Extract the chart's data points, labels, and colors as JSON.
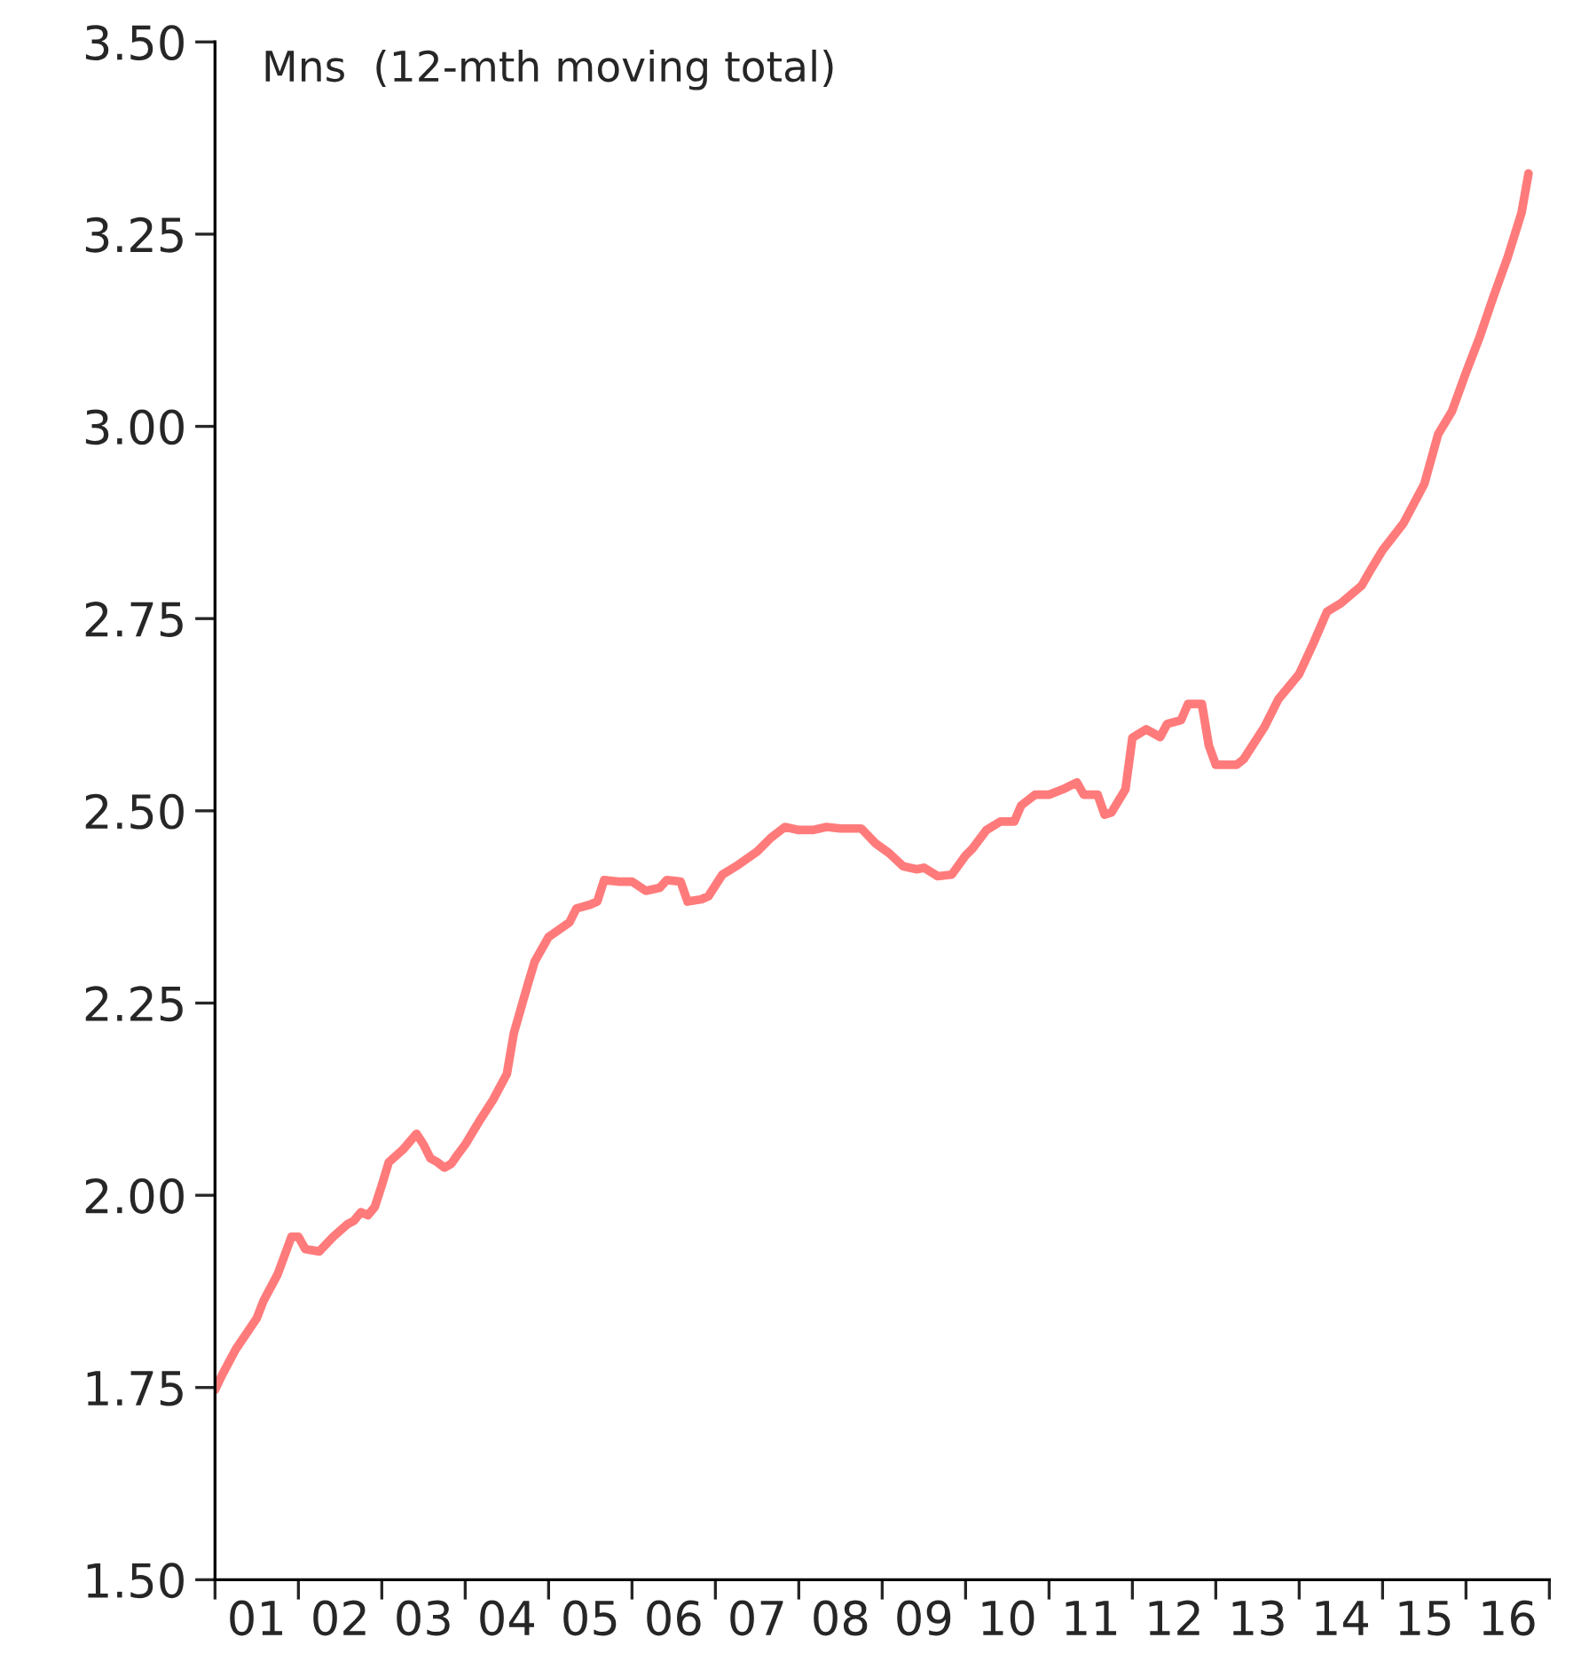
{
  "chart_data": {
    "type": "line",
    "annotations": [
      "Mns  (12-mth moving total)"
    ],
    "x": [
      "2001-01",
      "2001-02",
      "2001-04",
      "2001-07",
      "2001-08",
      "2001-10",
      "2001-12",
      "2002-01",
      "2002-02",
      "2002-04",
      "2002-06",
      "2002-08",
      "2002-09",
      "2002-10",
      "2002-11",
      "2002-12",
      "2003-01",
      "2003-02",
      "2003-04",
      "2003-06",
      "2003-07",
      "2003-08",
      "2003-09",
      "2003-10",
      "2003-11",
      "2003-12",
      "2004-01",
      "2004-03",
      "2004-05",
      "2004-07",
      "2004-08",
      "2004-10",
      "2004-11",
      "2005-01",
      "2005-04",
      "2005-05",
      "2005-07",
      "2005-08",
      "2005-09",
      "2005-11",
      "2006-01",
      "2006-03",
      "2006-05",
      "2006-06",
      "2006-08",
      "2006-09",
      "2006-11",
      "2006-12",
      "2007-02",
      "2007-04",
      "2007-07",
      "2007-09",
      "2007-11",
      "2008-01",
      "2008-03",
      "2008-05",
      "2008-07",
      "2008-10",
      "2008-12",
      "2009-02",
      "2009-04",
      "2009-06",
      "2009-07",
      "2009-09",
      "2009-11",
      "2010-01",
      "2010-02",
      "2010-04",
      "2010-06",
      "2010-08",
      "2010-09",
      "2010-11",
      "2011-01",
      "2011-03",
      "2011-05",
      "2011-06",
      "2011-08",
      "2011-09",
      "2011-10",
      "2011-12",
      "2012-01",
      "2012-03",
      "2012-05",
      "2012-06",
      "2012-08",
      "2012-09",
      "2012-11",
      "2012-12",
      "2013-01",
      "2013-04",
      "2013-05",
      "2013-08",
      "2013-10",
      "2014-01",
      "2014-03",
      "2014-05",
      "2014-07",
      "2014-10",
      "2014-11",
      "2015-01",
      "2015-04",
      "2015-07",
      "2015-09",
      "2015-11",
      "2016-01",
      "2016-03",
      "2016-05",
      "2016-07",
      "2016-09",
      "2016-10"
    ],
    "series": [
      {
        "color": "#ff7b7b",
        "values": [
          1.747,
          1.766,
          1.8,
          1.84,
          1.863,
          1.897,
          1.946,
          1.946,
          1.93,
          1.927,
          1.946,
          1.962,
          1.967,
          1.978,
          1.974,
          1.985,
          2.013,
          2.043,
          2.059,
          2.08,
          2.066,
          2.048,
          2.043,
          2.036,
          2.041,
          2.054,
          2.066,
          2.096,
          2.124,
          2.158,
          2.211,
          2.274,
          2.304,
          2.336,
          2.355,
          2.373,
          2.378,
          2.382,
          2.41,
          2.408,
          2.408,
          2.396,
          2.4,
          2.41,
          2.408,
          2.382,
          2.385,
          2.389,
          2.417,
          2.428,
          2.447,
          2.465,
          2.479,
          2.475,
          2.475,
          2.479,
          2.477,
          2.477,
          2.458,
          2.445,
          2.428,
          2.424,
          2.426,
          2.415,
          2.417,
          2.442,
          2.451,
          2.475,
          2.486,
          2.486,
          2.507,
          2.521,
          2.521,
          2.528,
          2.537,
          2.521,
          2.521,
          2.495,
          2.498,
          2.528,
          2.595,
          2.606,
          2.596,
          2.613,
          2.618,
          2.639,
          2.639,
          2.585,
          2.56,
          2.56,
          2.567,
          2.609,
          2.645,
          2.678,
          2.717,
          2.759,
          2.77,
          2.793,
          2.809,
          2.839,
          2.874,
          2.925,
          2.99,
          3.02,
          3.07,
          3.117,
          3.17,
          3.22,
          3.278,
          3.329
        ]
      }
    ],
    "xlim": [
      "2001-01",
      "2017-01"
    ],
    "xticks": [
      {
        "value": "2001-01",
        "label": null
      },
      {
        "value": "2001-07",
        "label": "01"
      },
      {
        "value": "2002-01",
        "label": null
      },
      {
        "value": "2002-07",
        "label": "02"
      },
      {
        "value": "2003-01",
        "label": null
      },
      {
        "value": "2003-07",
        "label": "03"
      },
      {
        "value": "2004-01",
        "label": null
      },
      {
        "value": "2004-07",
        "label": "04"
      },
      {
        "value": "2005-01",
        "label": null
      },
      {
        "value": "2005-07",
        "label": "05"
      },
      {
        "value": "2006-01",
        "label": null
      },
      {
        "value": "2006-07",
        "label": "06"
      },
      {
        "value": "2007-01",
        "label": null
      },
      {
        "value": "2007-07",
        "label": "07"
      },
      {
        "value": "2008-01",
        "label": null
      },
      {
        "value": "2008-07",
        "label": "08"
      },
      {
        "value": "2009-01",
        "label": null
      },
      {
        "value": "2009-07",
        "label": "09"
      },
      {
        "value": "2010-01",
        "label": null
      },
      {
        "value": "2010-07",
        "label": "10"
      },
      {
        "value": "2011-01",
        "label": null
      },
      {
        "value": "2011-07",
        "label": "11"
      },
      {
        "value": "2012-01",
        "label": null
      },
      {
        "value": "2012-07",
        "label": "12"
      },
      {
        "value": "2013-01",
        "label": null
      },
      {
        "value": "2013-07",
        "label": "13"
      },
      {
        "value": "2014-01",
        "label": null
      },
      {
        "value": "2014-07",
        "label": "14"
      },
      {
        "value": "2015-01",
        "label": null
      },
      {
        "value": "2015-07",
        "label": "15"
      },
      {
        "value": "2016-01",
        "label": null
      },
      {
        "value": "2016-07",
        "label": "16"
      },
      {
        "value": "2017-01",
        "label": null
      }
    ],
    "ylim": [
      1.5,
      3.5
    ],
    "yticks": [
      {
        "value": 1.5,
        "label": "1.50"
      },
      {
        "value": 1.75,
        "label": "1.75"
      },
      {
        "value": 2.0,
        "label": "2.00"
      },
      {
        "value": 2.25,
        "label": "2.25"
      },
      {
        "value": 2.5,
        "label": "2.50"
      },
      {
        "value": 2.75,
        "label": "2.75"
      },
      {
        "value": 3.0,
        "label": "3.00"
      },
      {
        "value": 3.25,
        "label": "3.25"
      },
      {
        "value": 3.5,
        "label": "3.50"
      }
    ],
    "grid": false,
    "marker": "none",
    "line_style": "solid"
  }
}
